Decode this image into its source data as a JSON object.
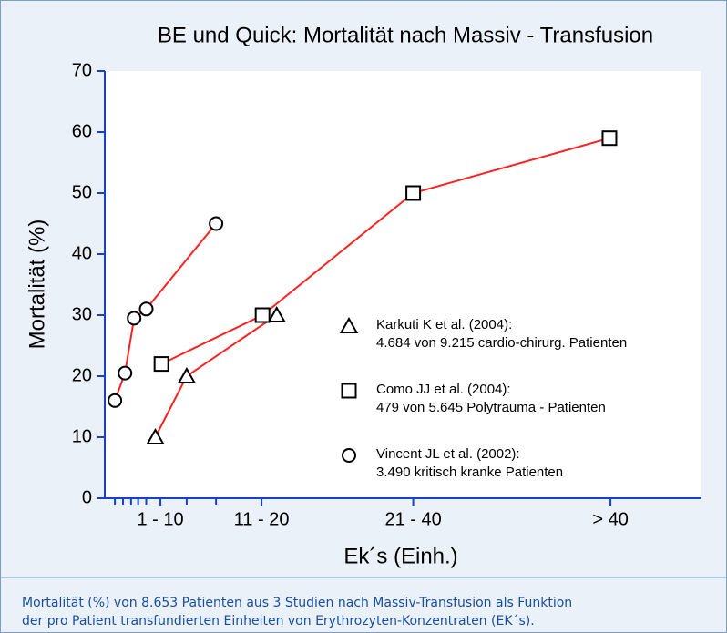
{
  "chart_data": {
    "type": "line",
    "title": "BE und Quick: Mortalität nach Massiv - Transfusion",
    "xlabel": "Ek´s (Einh.)",
    "ylabel": "Mortalität (%)",
    "xlim": [
      0,
      59
    ],
    "xticks": [
      {
        "value": 5.5,
        "label": "1 - 10"
      },
      {
        "value": 15.5,
        "label": "11 - 20"
      },
      {
        "value": 30.5,
        "label": "21 - 40"
      },
      {
        "value": 50,
        "label": "> 40"
      }
    ],
    "minor_xticks": [
      1,
      1.8,
      2.6,
      3.3,
      4.1,
      8.1,
      11
    ],
    "ylim": [
      0,
      70
    ],
    "yticks": [
      0,
      10,
      20,
      30,
      40,
      50,
      60,
      70
    ],
    "series": [
      {
        "name": "Karkuti K et al. (2004):",
        "description": "4.684 von 9.215 cardio-chirurg. Patienten",
        "marker": "triangle",
        "color": "#ff2020",
        "marker_color": "#000000",
        "x": [
          5.0,
          8.1,
          17.0
        ],
        "values": [
          10,
          20,
          30
        ]
      },
      {
        "name": "Como JJ et al. (2004):",
        "description": "479 von 5.645 Polytrauma - Patienten",
        "marker": "square",
        "color": "#ff2020",
        "marker_color": "#000000",
        "x": [
          5.6,
          15.6,
          30.5,
          49.9
        ],
        "values": [
          22,
          30,
          50,
          59
        ]
      },
      {
        "name": "Vincent JL et al. (2002):",
        "description": "3.490 kritisch kranke Patienten",
        "marker": "circle",
        "color": "#ff2020",
        "marker_color": "#000000",
        "x": [
          1.0,
          2.0,
          2.9,
          4.1,
          11.0
        ],
        "values": [
          16,
          20.5,
          29.5,
          31,
          45
        ]
      }
    ],
    "axis_color": "#1a3fd0",
    "caption": [
      "Mortalität (%) von 8.653 Patienten aus 3 Studien nach Massiv-Transfusion als Funktion",
      "der pro Patient transfundierten Einheiten von Erythrozyten-Konzentraten (EK´s)."
    ]
  }
}
